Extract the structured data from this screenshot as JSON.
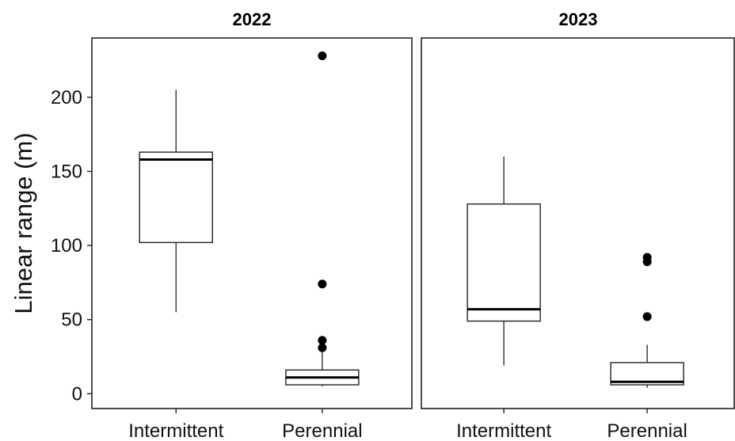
{
  "chart_data": {
    "type": "boxplot",
    "ylabel": "Linear range (m)",
    "xlabel": "",
    "ylim": [
      -10,
      240
    ],
    "yticks": [
      0,
      50,
      100,
      150,
      200
    ],
    "categories": [
      "Intermittent",
      "Perennial"
    ],
    "grid": false,
    "panels": [
      {
        "title": "2022",
        "boxes": [
          {
            "category": "Intermittent",
            "whisker_low": 55,
            "q1": 102,
            "median": 158,
            "q3": 163,
            "whisker_high": 205,
            "outliers": []
          },
          {
            "category": "Perennial",
            "whisker_low": 5,
            "q1": 6,
            "median": 11,
            "q3": 16,
            "whisker_high": 28,
            "outliers": [
              31,
              36,
              74,
              228
            ]
          }
        ]
      },
      {
        "title": "2023",
        "boxes": [
          {
            "category": "Intermittent",
            "whisker_low": 19,
            "q1": 49,
            "median": 57,
            "q3": 128,
            "whisker_high": 160,
            "outliers": []
          },
          {
            "category": "Perennial",
            "whisker_low": 4,
            "q1": 6,
            "median": 8,
            "q3": 21,
            "whisker_high": 33,
            "outliers": [
              52,
              89,
              92
            ]
          }
        ]
      }
    ]
  }
}
